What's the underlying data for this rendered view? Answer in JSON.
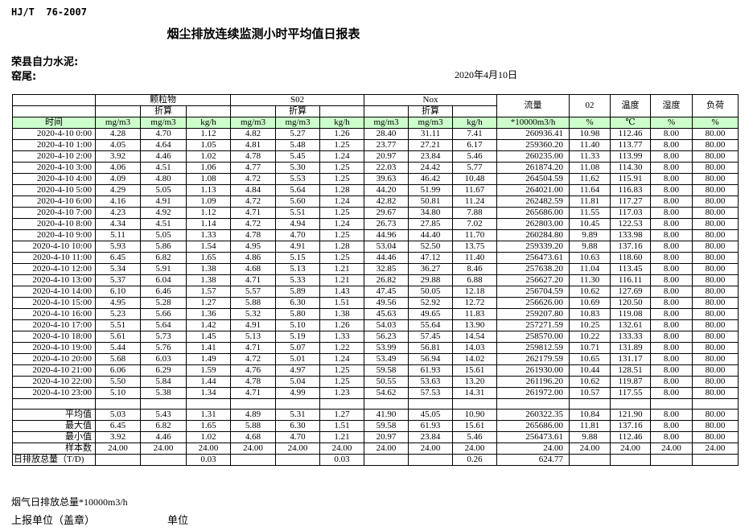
{
  "header": {
    "standard": "HJ/T  76-2007",
    "title": "烟尘排放连续监测小时平均值日报表",
    "company": "荣县自力水泥:",
    "location": "窑尾:",
    "date": "2020年4月10日"
  },
  "table": {
    "time_label": "时间",
    "group_pm": "颗粒物",
    "group_so2": "S02",
    "group_nox": "Nox",
    "zhesuan": "折算",
    "flow_label": "流量",
    "o2_label": "02",
    "temp_label": "温度",
    "humidity_label": "湿度",
    "load_label": "负荷",
    "units": [
      "mg/m3",
      "mg/m3",
      "kg/h",
      "mg/m3",
      "mg/m3",
      "kg/h",
      "mg/m3",
      "mg/m3",
      "kg/h",
      "*10000m3/h",
      "%",
      "℃",
      "%",
      "%"
    ],
    "header_green": "#ccffcc",
    "rows": [
      {
        "time": "2020-4-10  0:00",
        "values": [
          "4.28",
          "4.70",
          "1.12",
          "4.82",
          "5.27",
          "1.26",
          "28.40",
          "31.11",
          "7.41",
          "260936.41",
          "10.98",
          "112.46",
          "8.00",
          "80.00"
        ]
      },
      {
        "time": "2020-4-10  1:00",
        "values": [
          "4.05",
          "4.64",
          "1.05",
          "4.81",
          "5.48",
          "1.25",
          "23.77",
          "27.21",
          "6.17",
          "259360.20",
          "11.40",
          "113.77",
          "8.00",
          "80.00"
        ]
      },
      {
        "time": "2020-4-10  2:00",
        "values": [
          "3.92",
          "4.46",
          "1.02",
          "4.78",
          "5.45",
          "1.24",
          "20.97",
          "23.84",
          "5.46",
          "260235.00",
          "11.33",
          "113.99",
          "8.00",
          "80.00"
        ]
      },
      {
        "time": "2020-4-10  3:00",
        "values": [
          "4.06",
          "4.51",
          "1.06",
          "4.77",
          "5.30",
          "1.25",
          "22.03",
          "24.42",
          "5.77",
          "261874.20",
          "11.08",
          "114.30",
          "8.00",
          "80.00"
        ]
      },
      {
        "time": "2020-4-10  4:00",
        "values": [
          "4.09",
          "4.80",
          "1.08",
          "4.72",
          "5.53",
          "1.25",
          "39.63",
          "46.42",
          "10.48",
          "264504.59",
          "11.62",
          "115.91",
          "8.00",
          "80.00"
        ]
      },
      {
        "time": "2020-4-10  5:00",
        "values": [
          "4.29",
          "5.05",
          "1.13",
          "4.84",
          "5.64",
          "1.28",
          "44.20",
          "51.99",
          "11.67",
          "264021.00",
          "11.64",
          "116.83",
          "8.00",
          "80.00"
        ]
      },
      {
        "time": "2020-4-10  6:00",
        "values": [
          "4.16",
          "4.91",
          "1.09",
          "4.72",
          "5.60",
          "1.24",
          "42.82",
          "50.81",
          "11.24",
          "262482.59",
          "11.81",
          "117.27",
          "8.00",
          "80.00"
        ]
      },
      {
        "time": "2020-4-10  7:00",
        "values": [
          "4.23",
          "4.92",
          "1.12",
          "4.71",
          "5.51",
          "1.25",
          "29.67",
          "34.80",
          "7.88",
          "265686.00",
          "11.55",
          "117.03",
          "8.00",
          "80.00"
        ]
      },
      {
        "time": "2020-4-10  8:00",
        "values": [
          "4.34",
          "4.51",
          "1.14",
          "4.72",
          "4.94",
          "1.24",
          "26.73",
          "27.85",
          "7.02",
          "262803.00",
          "10.45",
          "122.53",
          "8.00",
          "80.00"
        ]
      },
      {
        "time": "2020-4-10  9:00",
        "values": [
          "5.11",
          "5.05",
          "1.33",
          "4.78",
          "4.70",
          "1.25",
          "44.96",
          "44.40",
          "11.70",
          "260284.80",
          "9.89",
          "133.98",
          "8.00",
          "80.00"
        ]
      },
      {
        "time": "2020-4-10 10:00",
        "values": [
          "5.93",
          "5.86",
          "1.54",
          "4.95",
          "4.91",
          "1.28",
          "53.04",
          "52.50",
          "13.75",
          "259339.20",
          "9.88",
          "137.16",
          "8.00",
          "80.00"
        ]
      },
      {
        "time": "2020-4-10 11:00",
        "values": [
          "6.45",
          "6.82",
          "1.65",
          "4.86",
          "5.15",
          "1.25",
          "44.46",
          "47.12",
          "11.40",
          "256473.61",
          "10.63",
          "118.60",
          "8.00",
          "80.00"
        ]
      },
      {
        "time": "2020-4-10 12:00",
        "values": [
          "5.34",
          "5.91",
          "1.38",
          "4.68",
          "5.13",
          "1.21",
          "32.85",
          "36.27",
          "8.46",
          "257638.20",
          "11.04",
          "113.45",
          "8.00",
          "80.00"
        ]
      },
      {
        "time": "2020-4-10 13:00",
        "values": [
          "5.37",
          "6.04",
          "1.38",
          "4.71",
          "5.33",
          "1.21",
          "26.82",
          "29.88",
          "6.88",
          "256627.20",
          "11.30",
          "116.11",
          "8.00",
          "80.00"
        ]
      },
      {
        "time": "2020-4-10 14:00",
        "values": [
          "6.10",
          "6.46",
          "1.57",
          "5.57",
          "5.89",
          "1.43",
          "47.45",
          "50.05",
          "12.18",
          "256704.59",
          "10.62",
          "127.69",
          "8.00",
          "80.00"
        ]
      },
      {
        "time": "2020-4-10 15:00",
        "values": [
          "4.95",
          "5.28",
          "1.27",
          "5.88",
          "6.30",
          "1.51",
          "49.56",
          "52.92",
          "12.72",
          "256626.00",
          "10.69",
          "120.50",
          "8.00",
          "80.00"
        ]
      },
      {
        "time": "2020-4-10 16:00",
        "values": [
          "5.23",
          "5.66",
          "1.36",
          "5.32",
          "5.80",
          "1.38",
          "45.63",
          "49.65",
          "11.83",
          "259207.80",
          "10.83",
          "119.08",
          "8.00",
          "80.00"
        ]
      },
      {
        "time": "2020-4-10 17:00",
        "values": [
          "5.51",
          "5.64",
          "1.42",
          "4.91",
          "5.10",
          "1.26",
          "54.03",
          "55.64",
          "13.90",
          "257271.59",
          "10.25",
          "132.61",
          "8.00",
          "80.00"
        ]
      },
      {
        "time": "2020-4-10 18:00",
        "values": [
          "5.61",
          "5.73",
          "1.45",
          "5.13",
          "5.19",
          "1.33",
          "56.23",
          "57.45",
          "14.54",
          "258570.00",
          "10.22",
          "133.33",
          "8.00",
          "80.00"
        ]
      },
      {
        "time": "2020-4-10 19:00",
        "values": [
          "5.44",
          "5.76",
          "1.41",
          "4.71",
          "5.07",
          "1.22",
          "53.99",
          "56.81",
          "14.03",
          "259812.59",
          "10.71",
          "131.89",
          "8.00",
          "80.00"
        ]
      },
      {
        "time": "2020-4-10 20:00",
        "values": [
          "5.68",
          "6.03",
          "1.49",
          "4.72",
          "5.01",
          "1.24",
          "53.49",
          "56.94",
          "14.02",
          "262179.59",
          "10.65",
          "131.17",
          "8.00",
          "80.00"
        ]
      },
      {
        "time": "2020-4-10 21:00",
        "values": [
          "6.06",
          "6.29",
          "1.59",
          "4.76",
          "4.97",
          "1.25",
          "59.58",
          "61.93",
          "15.61",
          "261930.00",
          "10.44",
          "128.51",
          "8.00",
          "80.00"
        ]
      },
      {
        "time": "2020-4-10 22:00",
        "values": [
          "5.50",
          "5.84",
          "1.44",
          "4.78",
          "5.04",
          "1.25",
          "50.55",
          "53.63",
          "13.20",
          "261196.20",
          "10.62",
          "119.87",
          "8.00",
          "80.00"
        ]
      },
      {
        "time": "2020-4-10 23:00",
        "values": [
          "5.10",
          "5.38",
          "1.34",
          "4.71",
          "4.99",
          "1.23",
          "54.62",
          "57.53",
          "14.31",
          "261972.00",
          "10.57",
          "117.55",
          "8.00",
          "80.00"
        ]
      }
    ],
    "summary": [
      {
        "label": "平均值",
        "values": [
          "5.03",
          "5.43",
          "1.31",
          "4.89",
          "5.31",
          "1.27",
          "41.90",
          "45.05",
          "10.90",
          "260322.35",
          "10.84",
          "121.90",
          "8.00",
          "80.00"
        ]
      },
      {
        "label": "最大值",
        "values": [
          "6.45",
          "6.82",
          "1.65",
          "5.88",
          "6.30",
          "1.51",
          "59.58",
          "61.93",
          "15.61",
          "265686.00",
          "11.81",
          "137.16",
          "8.00",
          "80.00"
        ]
      },
      {
        "label": "最小值",
        "values": [
          "3.92",
          "4.46",
          "1.02",
          "4.68",
          "4.70",
          "1.21",
          "20.97",
          "23.84",
          "5.46",
          "256473.61",
          "9.88",
          "112.46",
          "8.00",
          "80.00"
        ]
      },
      {
        "label": "样本数",
        "values": [
          "24.00",
          "24.00",
          "24.00",
          "24.00",
          "24.00",
          "24.00",
          "24.00",
          "24.00",
          "24.00",
          "24.00",
          "24.00",
          "24.00",
          "24.00",
          "24.00"
        ]
      },
      {
        "label": "日排放总量（T/D)",
        "values": [
          "",
          "",
          "0.03",
          "",
          "",
          "0.03",
          "",
          "",
          "0.26",
          "624.77",
          "",
          "",
          "",
          ""
        ]
      }
    ]
  },
  "footer": {
    "note": "烟气日排放总量*10000m3/h",
    "report_unit": "上报单位（盖章）",
    "unit": "单位"
  }
}
